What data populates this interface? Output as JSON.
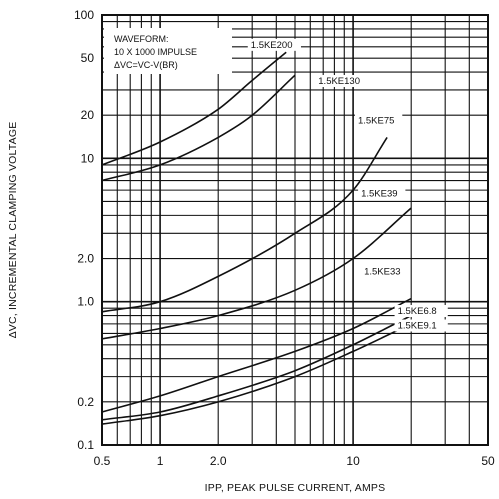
{
  "chart_data": {
    "type": "line",
    "title": "",
    "xlabel": "IPP, PEAK PULSE CURRENT, AMPS",
    "ylabel": "ΔVC, INCREMENTAL CLAMPING VOLTAGE",
    "xscale": "log",
    "yscale": "log",
    "xlim": [
      0.5,
      50
    ],
    "ylim": [
      0.1,
      100
    ],
    "grid": true,
    "x_ticks": [
      "0.5",
      "1",
      "2.0",
      "10",
      "50"
    ],
    "x_tick_values": [
      0.5,
      1,
      2,
      10,
      50
    ],
    "y_ticks": [
      "100",
      "50",
      "20",
      "10",
      "2.0",
      "1.0",
      "0.2",
      "0.1"
    ],
    "y_tick_values": [
      100,
      50,
      20,
      10,
      2,
      1,
      0.2,
      0.1
    ],
    "annotation": {
      "lines": [
        "WAVEFORM:",
        "10 X 1000 IMPULSE",
        "ΔVC=VC-V(BR)"
      ]
    },
    "series": [
      {
        "name": "1.5KE200",
        "x": [
          0.5,
          1,
          2,
          3,
          4.5
        ],
        "y": [
          9.0,
          13.0,
          22.0,
          35.0,
          55.0
        ]
      },
      {
        "name": "1.5KE130",
        "x": [
          0.5,
          1,
          2,
          3,
          5
        ],
        "y": [
          7.0,
          9.0,
          14.0,
          20.0,
          38.0
        ]
      },
      {
        "name": "1.5KE75",
        "x": [
          0.5,
          1,
          2,
          5,
          10,
          15
        ],
        "y": [
          0.85,
          1.0,
          1.5,
          3.0,
          6.0,
          14.0
        ]
      },
      {
        "name": "1.5KE39",
        "x": [
          0.5,
          1,
          2,
          5,
          10,
          20
        ],
        "y": [
          0.55,
          0.65,
          0.8,
          1.2,
          2.0,
          4.5
        ]
      },
      {
        "name": "1.5KE33",
        "x": [
          0.5,
          1,
          2,
          5,
          10,
          20
        ],
        "y": [
          0.17,
          0.22,
          0.3,
          0.45,
          0.65,
          1.05
        ]
      },
      {
        "name": "1.5KE6.8",
        "x": [
          0.5,
          1,
          2,
          5,
          10,
          20
        ],
        "y": [
          0.15,
          0.17,
          0.22,
          0.33,
          0.5,
          0.8
        ]
      },
      {
        "name": "1.5KE9.1",
        "x": [
          0.5,
          1,
          2,
          5,
          10,
          20
        ],
        "y": [
          0.14,
          0.16,
          0.2,
          0.3,
          0.45,
          0.7
        ]
      }
    ]
  }
}
